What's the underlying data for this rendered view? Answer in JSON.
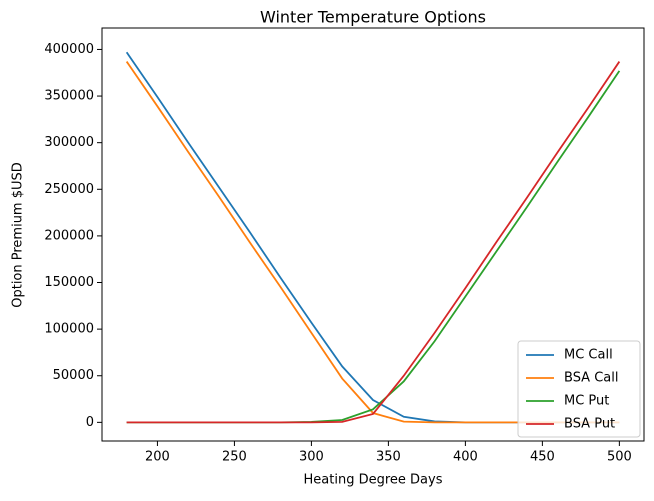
{
  "chart_data": {
    "type": "line",
    "title": "Winter Temperature Options",
    "xlabel": "Heating Degree Days",
    "ylabel": "Option Premium $USD",
    "x": [
      180,
      200,
      220,
      240,
      260,
      280,
      300,
      320,
      340,
      360,
      380,
      400,
      420,
      440,
      460,
      480,
      500
    ],
    "series": [
      {
        "name": "MC Call",
        "color": "#1f77b4",
        "values": [
          397000,
          349000,
          300000,
          252000,
          204000,
          155000,
          107000,
          60000,
          24000,
          6000,
          1000,
          0,
          0,
          0,
          0,
          0,
          0
        ]
      },
      {
        "name": "BSA Call",
        "color": "#ff7f0e",
        "values": [
          387000,
          339000,
          290000,
          242000,
          193000,
          145000,
          96000,
          47000,
          10000,
          800,
          0,
          0,
          0,
          0,
          0,
          0,
          0
        ]
      },
      {
        "name": "MC Put",
        "color": "#2ca02c",
        "values": [
          0,
          0,
          0,
          0,
          0,
          0,
          500,
          2500,
          14000,
          44000,
          87000,
          135000,
          183000,
          231000,
          280000,
          328000,
          377000
        ]
      },
      {
        "name": "BSA Put",
        "color": "#d62728",
        "values": [
          0,
          0,
          0,
          0,
          0,
          0,
          0,
          500,
          9000,
          50000,
          96000,
          144000,
          193000,
          241000,
          290000,
          338000,
          387000
        ]
      }
    ],
    "xlim": [
      164,
      516
    ],
    "ylim": [
      -20000,
      423000
    ],
    "xticks": [
      200,
      250,
      300,
      350,
      400,
      450,
      500
    ],
    "yticks": [
      0,
      50000,
      100000,
      150000,
      200000,
      250000,
      300000,
      350000,
      400000
    ],
    "legend": "lower right"
  }
}
